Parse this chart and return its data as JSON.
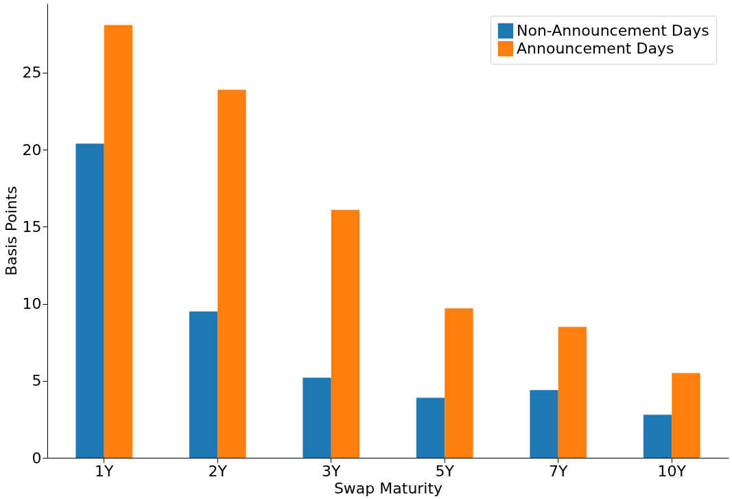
{
  "chart_data": {
    "type": "bar",
    "xlabel": "Swap Maturity",
    "ylabel": "Basis Points",
    "categories": [
      "1Y",
      "2Y",
      "3Y",
      "5Y",
      "7Y",
      "10Y"
    ],
    "series": [
      {
        "name": "Non-Announcement Days",
        "color": "#1f77b4",
        "values": [
          20.4,
          9.5,
          5.2,
          3.9,
          4.4,
          2.8
        ]
      },
      {
        "name": "Announcement Days",
        "color": "#ff7f0e",
        "values": [
          28.1,
          23.9,
          16.1,
          9.7,
          8.5,
          5.5
        ]
      }
    ],
    "ylim": [
      0,
      29.5
    ],
    "yticks": [
      0,
      5,
      10,
      15,
      20,
      25
    ],
    "grid": false,
    "legend": "top right"
  }
}
